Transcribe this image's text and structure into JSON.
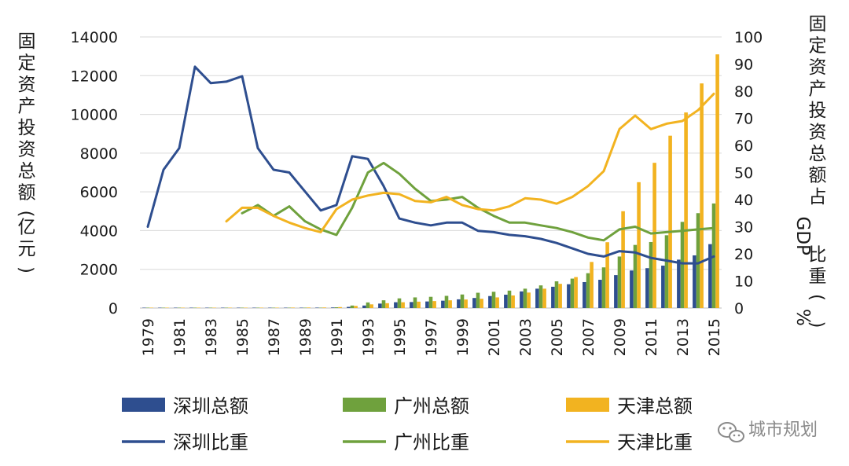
{
  "chart_data": {
    "type": "bar+line",
    "x": [
      1979,
      1980,
      1981,
      1982,
      1983,
      1984,
      1985,
      1986,
      1987,
      1988,
      1989,
      1990,
      1991,
      1992,
      1993,
      1994,
      1995,
      1996,
      1997,
      1998,
      1999,
      2000,
      2001,
      2002,
      2003,
      2004,
      2005,
      2006,
      2007,
      2008,
      2009,
      2010,
      2011,
      2012,
      2013,
      2014,
      2015
    ],
    "x_tick_labels": [
      "1979",
      "1981",
      "1983",
      "1985",
      "1987",
      "1989",
      "1991",
      "1993",
      "1995",
      "1997",
      "1999",
      "2001",
      "2003",
      "2005",
      "2007",
      "2009",
      "2011",
      "2013",
      "2015"
    ],
    "y_left": {
      "label": "固定资产投资总额(亿元)",
      "ticks": [
        "0",
        "2000",
        "4000",
        "6000",
        "8000",
        "10000",
        "12000",
        "14000"
      ],
      "range": [
        0,
        14000
      ]
    },
    "y_right": {
      "label": "固定资产投资总额占GDP比重(%)",
      "ticks": [
        "0",
        "10",
        "20",
        "30",
        "40",
        "50",
        "60",
        "70",
        "80",
        "90",
        "100"
      ],
      "range": [
        0,
        100
      ]
    },
    "bar_series": [
      {
        "name": "深圳总额",
        "color": "#2e4e8f",
        "values": [
          0.1,
          0.2,
          0.5,
          2,
          3,
          7,
          13,
          10,
          12,
          15,
          20,
          23,
          31,
          60,
          130,
          230,
          300,
          310,
          340,
          380,
          450,
          520,
          620,
          690,
          860,
          1000,
          1100,
          1230,
          1340,
          1460,
          1700,
          1940,
          2060,
          2190,
          2500,
          2720,
          3300
        ]
      },
      {
        "name": "广州总额",
        "color": "#6fa13d",
        "values": [
          1,
          1,
          1,
          1,
          2,
          3,
          5,
          6,
          8,
          12,
          14,
          16,
          40,
          130,
          290,
          400,
          500,
          550,
          580,
          630,
          700,
          790,
          840,
          900,
          1000,
          1170,
          1380,
          1520,
          1800,
          2100,
          2660,
          3260,
          3410,
          3760,
          4450,
          4900,
          5400
        ]
      },
      {
        "name": "天津总额",
        "color": "#f2b320",
        "values": [
          3,
          4,
          4,
          5,
          6,
          7,
          10,
          15,
          20,
          25,
          28,
          30,
          50,
          110,
          190,
          250,
          300,
          330,
          360,
          400,
          440,
          480,
          550,
          650,
          800,
          1000,
          1250,
          1600,
          2380,
          3400,
          5000,
          6500,
          7500,
          8900,
          10100,
          11600,
          13100
        ]
      }
    ],
    "line_series": [
      {
        "name": "深圳比重",
        "color": "#2e4e8f",
        "axis": "right",
        "x": [
          1979,
          1980,
          1981,
          1982,
          1983,
          1984,
          1985,
          1986,
          1987,
          1988,
          1989,
          1990,
          1991,
          1992,
          1993,
          1994,
          1995,
          1996,
          1997,
          1998,
          1999,
          2000,
          2001,
          2002,
          2003,
          2004,
          2005,
          2006,
          2007,
          2008,
          2009,
          2010,
          2011,
          2012,
          2013,
          2014,
          2015
        ],
        "values": [
          30,
          51,
          59,
          89,
          83,
          83.5,
          85.5,
          59,
          51,
          50,
          43,
          36,
          38,
          56,
          55,
          45,
          33,
          31.5,
          30.5,
          31.5,
          31.5,
          28.5,
          28,
          27,
          26.5,
          25.5,
          24,
          22,
          20,
          19,
          21,
          20.5,
          18.5,
          17.5,
          16.5,
          16.5,
          19
        ]
      },
      {
        "name": "广州比重",
        "color": "#6fa13d",
        "axis": "right",
        "x": [
          1985,
          1986,
          1987,
          1988,
          1989,
          1990,
          1991,
          1992,
          1993,
          1994,
          1995,
          1996,
          1997,
          1998,
          1999,
          2000,
          2001,
          2002,
          2003,
          2004,
          2005,
          2006,
          2007,
          2008,
          2009,
          2010,
          2011,
          2012,
          2013,
          2014,
          2015
        ],
        "values": [
          35,
          38,
          34,
          37.5,
          32,
          29,
          27,
          37,
          50,
          53.5,
          49.5,
          44,
          39.5,
          40,
          41,
          37,
          34,
          31.5,
          31.5,
          30.5,
          29.5,
          28,
          26,
          25,
          29,
          30,
          27.5,
          28,
          28.5,
          29,
          29.5
        ]
      },
      {
        "name": "天津比重",
        "color": "#f2b320",
        "axis": "right",
        "x": [
          1984,
          1985,
          1986,
          1987,
          1988,
          1989,
          1990,
          1991,
          1992,
          1993,
          1994,
          1995,
          1996,
          1997,
          1998,
          1999,
          2000,
          2001,
          2002,
          2003,
          2004,
          2005,
          2006,
          2007,
          2008,
          2009,
          2010,
          2011,
          2012,
          2013,
          2014,
          2015
        ],
        "values": [
          32,
          37,
          37,
          34,
          31.5,
          29.5,
          28,
          36.5,
          40,
          41.5,
          42.5,
          42,
          39.5,
          39,
          41,
          38,
          36.5,
          36,
          37.5,
          40.5,
          40,
          38.5,
          41,
          45,
          50.5,
          66,
          71,
          66,
          68,
          69,
          73,
          79
        ]
      }
    ],
    "legend": [
      {
        "name": "深圳总额",
        "kind": "bar",
        "color": "#2e4e8f"
      },
      {
        "name": "广州总额",
        "kind": "bar",
        "color": "#6fa13d"
      },
      {
        "name": "天津总额",
        "kind": "bar",
        "color": "#f2b320"
      },
      {
        "name": "深圳比重",
        "kind": "line",
        "color": "#2e4e8f"
      },
      {
        "name": "广州比重",
        "kind": "line",
        "color": "#6fa13d"
      },
      {
        "name": "天津比重",
        "kind": "line",
        "color": "#f2b320"
      }
    ],
    "legend_position": "bottom",
    "grid": true
  },
  "watermark": {
    "text": "城市规划",
    "icon": "wechat-icon"
  }
}
